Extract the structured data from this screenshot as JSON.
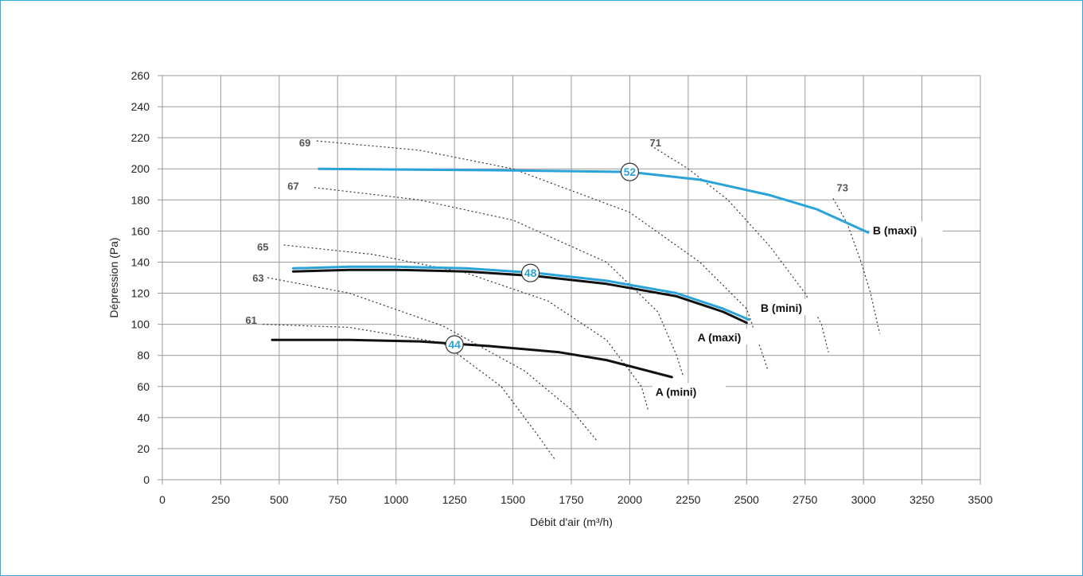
{
  "chart_data": {
    "type": "line",
    "xlabel": "Débit d'air (m³/h)",
    "ylabel": "Dépression (Pa)",
    "xlim": [
      0,
      3500
    ],
    "ylim": [
      0,
      260
    ],
    "x_ticks": [
      0,
      250,
      500,
      750,
      1000,
      1250,
      1500,
      1750,
      2000,
      2250,
      2500,
      2750,
      3000,
      3250,
      3500
    ],
    "y_ticks": [
      0,
      20,
      40,
      60,
      80,
      100,
      120,
      140,
      160,
      180,
      200,
      220,
      240,
      260
    ],
    "grid": true,
    "series": [
      {
        "name": "B (maxi)",
        "color": "#29a3d8",
        "width": 3,
        "points": [
          [
            670,
            200
          ],
          [
            1500,
            199
          ],
          [
            2000,
            198
          ],
          [
            2300,
            193
          ],
          [
            2600,
            183
          ],
          [
            2800,
            174
          ],
          [
            3020,
            159
          ]
        ],
        "label_at": [
          3040,
          160
        ]
      },
      {
        "name": "A (maxi)",
        "color": "#111111",
        "width": 3,
        "points": [
          [
            560,
            134
          ],
          [
            800,
            135
          ],
          [
            1000,
            135
          ],
          [
            1300,
            134
          ],
          [
            1600,
            131
          ],
          [
            1900,
            126
          ],
          [
            2200,
            118
          ],
          [
            2400,
            108
          ],
          [
            2500,
            101
          ]
        ],
        "label_at": [
          2290,
          91
        ]
      },
      {
        "name": "B (mini)",
        "color": "#29a3d8",
        "width": 3,
        "points": [
          [
            560,
            136
          ],
          [
            800,
            137
          ],
          [
            1000,
            137
          ],
          [
            1300,
            136
          ],
          [
            1600,
            133
          ],
          [
            1900,
            128
          ],
          [
            2200,
            120
          ],
          [
            2400,
            110
          ],
          [
            2510,
            103
          ]
        ],
        "label_at": [
          2560,
          110
        ]
      },
      {
        "name": "A (mini)",
        "color": "#111111",
        "width": 3,
        "points": [
          [
            470,
            90
          ],
          [
            800,
            90
          ],
          [
            1100,
            89
          ],
          [
            1400,
            86
          ],
          [
            1700,
            82
          ],
          [
            1900,
            77
          ],
          [
            2180,
            66
          ]
        ],
        "label_at": [
          2110,
          56
        ]
      }
    ],
    "markers": [
      {
        "text": "52",
        "x": 2000,
        "y": 198
      },
      {
        "text": "48",
        "x": 1575,
        "y": 133
      },
      {
        "text": "44",
        "x": 1250,
        "y": 87
      }
    ],
    "iso_lines": [
      {
        "text": "61",
        "label_x": 380,
        "label_y": 103,
        "points": [
          [
            430,
            100
          ],
          [
            800,
            98
          ],
          [
            1200,
            88
          ],
          [
            1450,
            60
          ],
          [
            1600,
            30
          ],
          [
            1680,
            13
          ]
        ]
      },
      {
        "text": "63",
        "label_x": 410,
        "label_y": 130,
        "points": [
          [
            450,
            130
          ],
          [
            800,
            120
          ],
          [
            1200,
            99
          ],
          [
            1550,
            70
          ],
          [
            1750,
            45
          ],
          [
            1860,
            25
          ]
        ]
      },
      {
        "text": "65",
        "label_x": 430,
        "label_y": 150,
        "points": [
          [
            520,
            151
          ],
          [
            900,
            145
          ],
          [
            1300,
            133
          ],
          [
            1650,
            115
          ],
          [
            1900,
            90
          ],
          [
            2050,
            60
          ],
          [
            2080,
            44
          ]
        ]
      },
      {
        "text": "67",
        "label_x": 560,
        "label_y": 189,
        "points": [
          [
            650,
            188
          ],
          [
            1100,
            180
          ],
          [
            1500,
            167
          ],
          [
            1900,
            140
          ],
          [
            2120,
            108
          ],
          [
            2200,
            80
          ],
          [
            2230,
            66
          ]
        ]
      },
      {
        "text": "69",
        "label_x": 610,
        "label_y": 217,
        "points": [
          [
            660,
            218
          ],
          [
            1100,
            212
          ],
          [
            1500,
            200
          ],
          [
            2000,
            172
          ],
          [
            2300,
            140
          ],
          [
            2500,
            110
          ],
          [
            2570,
            80
          ],
          [
            2590,
            71
          ]
        ]
      },
      {
        "text": "71",
        "label_x": 2110,
        "label_y": 217,
        "points": [
          [
            2090,
            215
          ],
          [
            2250,
            200
          ],
          [
            2420,
            180
          ],
          [
            2600,
            150
          ],
          [
            2750,
            120
          ],
          [
            2820,
            100
          ],
          [
            2850,
            82
          ]
        ]
      },
      {
        "text": "73",
        "label_x": 2910,
        "label_y": 188,
        "points": [
          [
            2870,
            181
          ],
          [
            2930,
            165
          ],
          [
            2990,
            140
          ],
          [
            3030,
            120
          ],
          [
            3060,
            100
          ],
          [
            3070,
            94
          ]
        ]
      }
    ]
  }
}
